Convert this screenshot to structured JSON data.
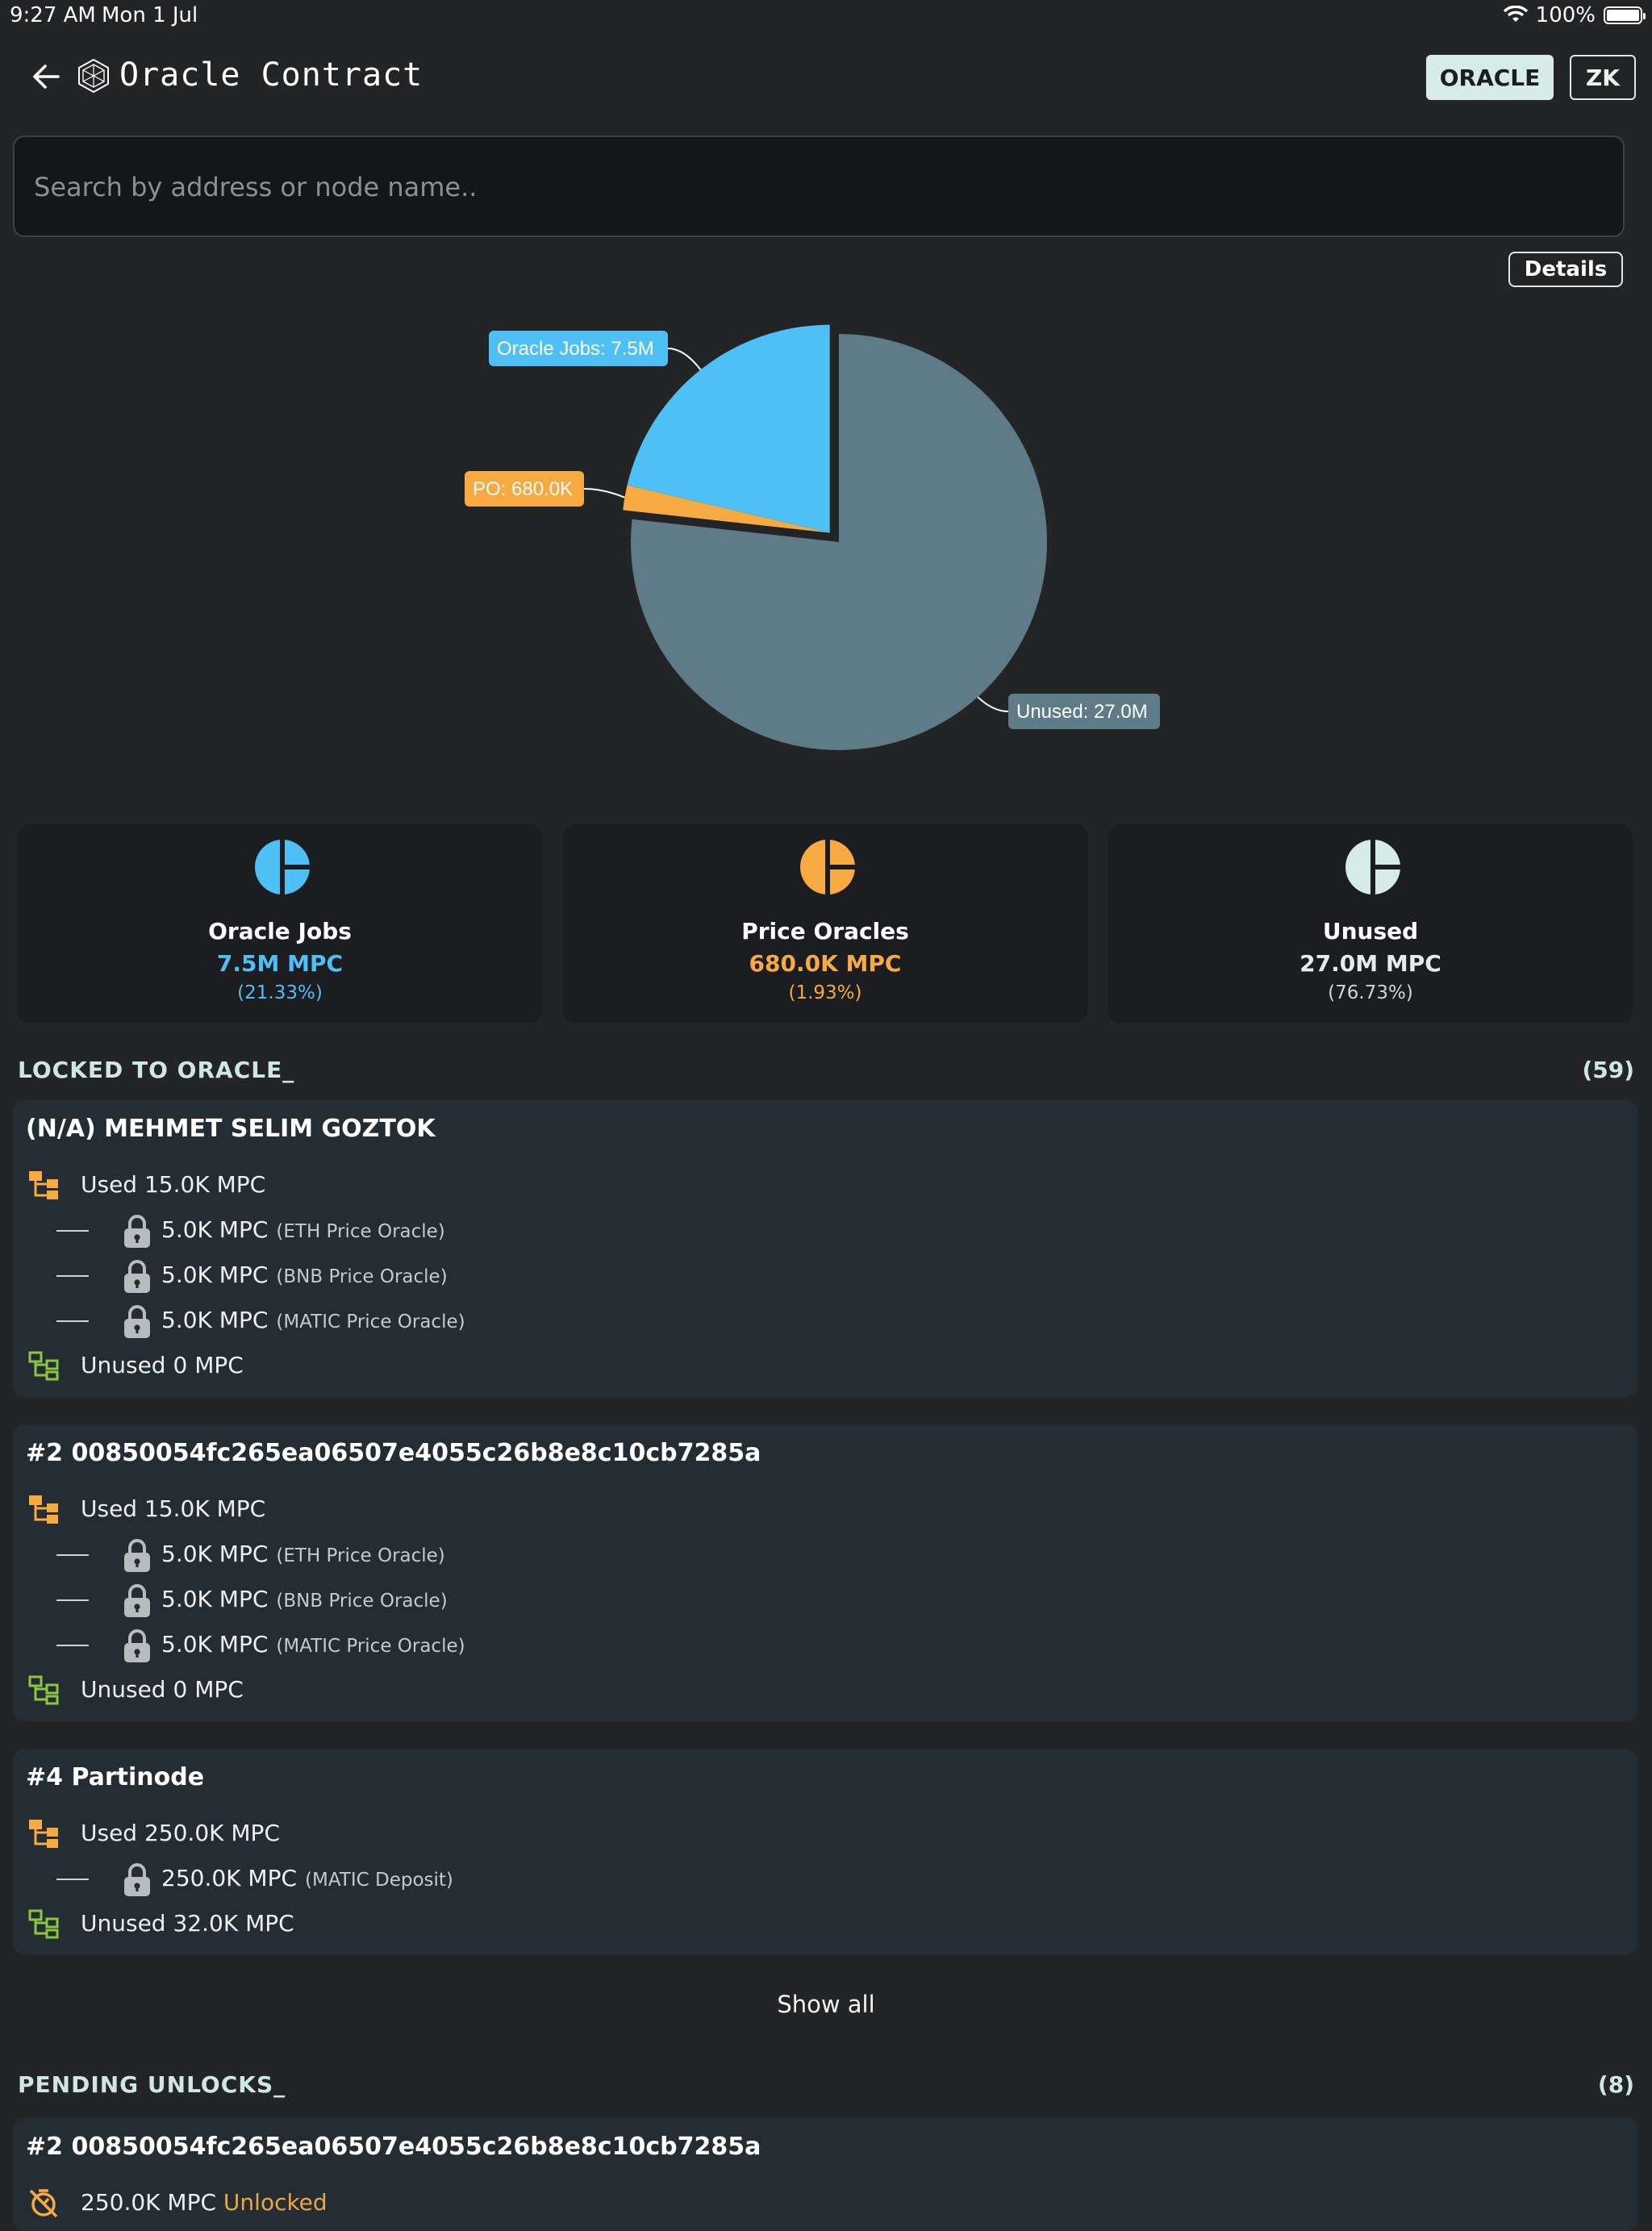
{
  "status": {
    "time": "9:27 AM",
    "date": "Mon 1 Jul",
    "battery": "100%"
  },
  "header": {
    "title": "Oracle Contract",
    "tabs": [
      "ORACLE",
      "ZK"
    ],
    "active_tab": "ORACLE"
  },
  "search": {
    "placeholder": "Search by address or node name.."
  },
  "details_label": "Details",
  "chart_data": {
    "type": "pie",
    "unit": "MPC",
    "slices": [
      {
        "name": "Oracle Jobs",
        "label": "Oracle Jobs: 7.5M",
        "value": 7.5,
        "percent": 21.33,
        "color": "#4fc0f5",
        "exploded": true
      },
      {
        "name": "PO",
        "label": "PO: 680.0K",
        "value": 0.68,
        "percent": 1.93,
        "color": "#f7aa41",
        "exploded": true
      },
      {
        "name": "Unused",
        "label": "Unused: 27.0M",
        "value": 27.0,
        "percent": 76.73,
        "color": "#5f7b88",
        "exploded": false
      }
    ]
  },
  "stats": [
    {
      "name": "Oracle Jobs",
      "value": "7.5M MPC",
      "percent": "(21.33%)",
      "color": "#4fc0f5"
    },
    {
      "name": "Price Oracles",
      "value": "680.0K MPC",
      "percent": "(1.93%)",
      "color": "#f7aa41"
    },
    {
      "name": "Unused",
      "value": "27.0M MPC",
      "percent": "(76.73%)",
      "color": "#d5ebe6"
    }
  ],
  "locked": {
    "heading": "LOCKED TO ORACLE_",
    "count": "(59)",
    "cards": [
      {
        "title": "(N/A) MEHMET SELIM GOZTOK",
        "used": "Used 15.0K MPC",
        "items": [
          {
            "amount": "5.0K MPC",
            "label": "(ETH Price Oracle)"
          },
          {
            "amount": "5.0K MPC",
            "label": "(BNB Price Oracle)"
          },
          {
            "amount": "5.0K MPC",
            "label": "(MATIC Price Oracle)"
          }
        ],
        "unused": "Unused 0 MPC"
      },
      {
        "title": "#2 00850054fc265ea06507e4055c26b8e8c10cb7285a",
        "used": "Used 15.0K MPC",
        "items": [
          {
            "amount": "5.0K MPC",
            "label": "(ETH Price Oracle)"
          },
          {
            "amount": "5.0K MPC",
            "label": "(BNB Price Oracle)"
          },
          {
            "amount": "5.0K MPC",
            "label": "(MATIC Price Oracle)"
          }
        ],
        "unused": "Unused 0 MPC"
      },
      {
        "title": "#4 Partinode",
        "used": "Used 250.0K MPC",
        "items": [
          {
            "amount": "250.0K MPC",
            "label": "(MATIC Deposit)"
          }
        ],
        "unused": "Unused 32.0K MPC"
      }
    ],
    "show_all": "Show all"
  },
  "pending": {
    "heading": "PENDING UNLOCKS_",
    "count": "(8)",
    "cards": [
      {
        "title": "#2 00850054fc265ea06507e4055c26b8e8c10cb7285a",
        "amount": "250.0K MPC",
        "status": "Unlocked"
      }
    ]
  }
}
